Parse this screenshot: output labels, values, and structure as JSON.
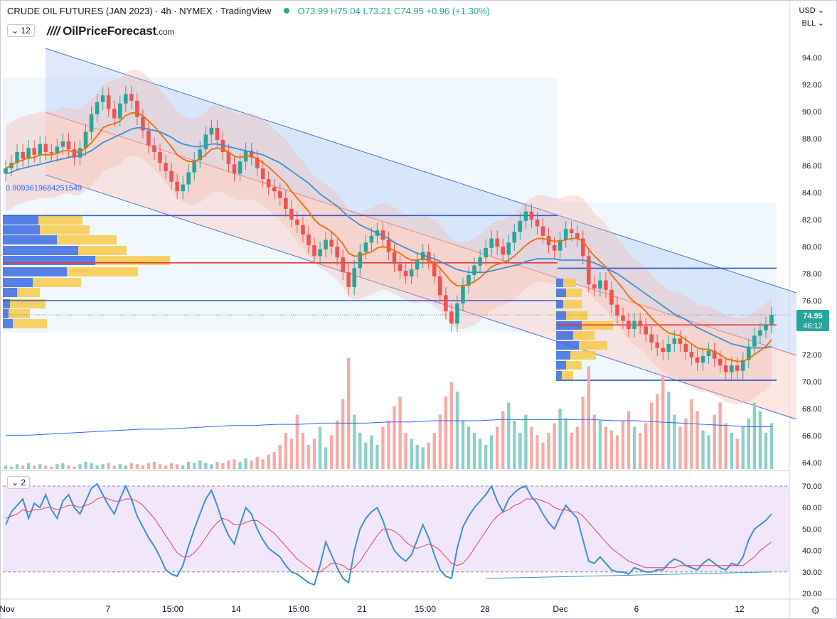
{
  "header": {
    "symbol": "CRUDE OIL FUTURES (JAN 2023)",
    "interval": "4h",
    "exchange": "NYMEX",
    "platform": "TradingView",
    "ohlc": "O73.99 H75.04 L73.21 C74.95 +0.96 (+1.30%)",
    "indicator_count": "12",
    "currency": "USD",
    "unit": "BLL"
  },
  "logo": {
    "name": "OilPriceForecast",
    "suffix": ".com"
  },
  "rsi_pane": {
    "indicator_count": "2",
    "levels": [
      30,
      70
    ],
    "ticks": [
      "70.00",
      "60.00",
      "50.00",
      "40.00",
      "30.00",
      "20.00"
    ]
  },
  "price_tag": {
    "price": "74.95",
    "countdown": "46:12"
  },
  "fib_label": "0.9093619684251549",
  "colors": {
    "up": "#26a69a",
    "down": "#ef5350",
    "ema_fast": "#ef6c00",
    "ema_slow": "#3a8fd0",
    "channel_line": "#4a6fd6",
    "level": "#3557c9",
    "rsi_line": "#3a8fd0",
    "rsi_signal": "#e0405a"
  },
  "chart_data": {
    "type": "candlestick",
    "title": "CRUDE OIL FUTURES (JAN 2023)",
    "y_axis": {
      "ylim": [
        63.5,
        95.5
      ],
      "ticks": [
        "94.00",
        "92.00",
        "90.00",
        "88.00",
        "86.00",
        "84.00",
        "82.00",
        "80.00",
        "78.00",
        "76.00",
        "74.00",
        "72.00",
        "70.00",
        "68.00",
        "66.00",
        "64.00"
      ]
    },
    "x_axis": {
      "ticks": [
        "Nov",
        "7",
        "15:00",
        "14",
        "15:00",
        "21",
        "15:00",
        "28",
        "Dec",
        "6",
        "12"
      ]
    },
    "last": {
      "open": 73.99,
      "high": 75.04,
      "low": 73.21,
      "close": 74.95,
      "change": 0.96,
      "change_pct": 1.3
    },
    "key_levels": [
      82.3,
      78.8,
      78.4,
      76.0,
      74.2,
      70.1
    ],
    "closes": [
      85.8,
      86.2,
      87.0,
      86.5,
      87.3,
      86.8,
      87.6,
      87.0,
      86.9,
      87.4,
      87.8,
      87.2,
      86.6,
      87.3,
      88.5,
      89.8,
      90.7,
      91.2,
      90.2,
      89.5,
      90.6,
      91.3,
      90.8,
      89.6,
      88.6,
      87.5,
      87.0,
      86.2,
      85.6,
      84.8,
      84.1,
      84.6,
      85.5,
      86.4,
      87.2,
      88.3,
      88.8,
      87.9,
      87.0,
      86.1,
      85.4,
      86.3,
      87.1,
      86.6,
      85.8,
      85.0,
      84.4,
      84.1,
      83.6,
      82.8,
      82.0,
      81.6,
      80.9,
      80.1,
      79.3,
      79.8,
      80.5,
      80.0,
      79.2,
      78.1,
      77.0,
      78.4,
      79.6,
      80.3,
      80.8,
      81.2,
      80.5,
      79.6,
      78.7,
      78.2,
      77.8,
      78.3,
      79.0,
      79.6,
      78.9,
      77.8,
      76.4,
      75.2,
      74.3,
      75.8,
      77.1,
      77.9,
      78.6,
      79.2,
      79.9,
      80.6,
      80.0,
      79.4,
      80.3,
      81.1,
      81.9,
      82.6,
      82.0,
      81.5,
      80.8,
      80.1,
      79.7,
      80.5,
      81.3,
      81.0,
      80.6,
      79.3,
      77.2,
      76.9,
      77.5,
      76.8,
      75.7,
      74.9,
      74.5,
      73.9,
      74.5,
      74.1,
      73.5,
      72.9,
      72.5,
      72.2,
      72.8,
      73.2,
      72.8,
      72.2,
      71.8,
      71.4,
      71.9,
      72.3,
      71.7,
      71.2,
      70.7,
      71.2,
      70.8,
      71.6,
      72.6,
      73.4,
      73.8,
      74.2,
      74.95
    ],
    "ema_fast": [
      85.8,
      86.0,
      86.3,
      86.4,
      86.6,
      86.6,
      86.8,
      86.8,
      86.8,
      86.9,
      87.1,
      87.1,
      87.0,
      87.0,
      87.3,
      87.7,
      88.2,
      88.8,
      89.0,
      89.1,
      89.3,
      89.7,
      89.9,
      89.9,
      89.7,
      89.3,
      88.9,
      88.4,
      87.9,
      87.4,
      86.8,
      86.5,
      86.3,
      86.3,
      86.5,
      86.8,
      87.2,
      87.3,
      87.2,
      87.0,
      86.7,
      86.6,
      86.7,
      86.7,
      86.5,
      86.2,
      85.9,
      85.5,
      85.1,
      84.7,
      84.1,
      83.6,
      83.1,
      82.6,
      82.0,
      81.6,
      81.4,
      81.1,
      80.7,
      80.2,
      79.5,
      79.3,
      79.3,
      79.5,
      79.6,
      79.9,
      80.0,
      79.9,
      79.7,
      79.5,
      79.2,
      79.0,
      79.0,
      79.1,
      79.0,
      78.8,
      78.4,
      77.9,
      77.4,
      77.1,
      77.1,
      77.2,
      77.4,
      77.7,
      78.1,
      78.5,
      78.7,
      78.8,
      79.0,
      79.3,
      79.7,
      80.1,
      80.4,
      80.6,
      80.6,
      80.5,
      80.4,
      80.4,
      80.5,
      80.6,
      80.6,
      80.4,
      79.8,
      79.3,
      78.9,
      78.5,
      77.9,
      77.4,
      76.9,
      76.3,
      75.9,
      75.6,
      75.2,
      74.7,
      74.3,
      73.9,
      73.6,
      73.5,
      73.4,
      73.1,
      72.8,
      72.5,
      72.4,
      72.4,
      72.2,
      72.0,
      71.7,
      71.6,
      71.5,
      71.5,
      71.7,
      72.0,
      72.3,
      72.6,
      73.1
    ],
    "ema_slow": [
      85.4,
      85.5,
      85.7,
      85.8,
      85.9,
      86.0,
      86.1,
      86.2,
      86.3,
      86.4,
      86.5,
      86.6,
      86.7,
      86.7,
      86.9,
      87.1,
      87.4,
      87.7,
      87.9,
      88.1,
      88.3,
      88.5,
      88.7,
      88.8,
      88.8,
      88.7,
      88.6,
      88.5,
      88.3,
      88.1,
      87.8,
      87.6,
      87.5,
      87.4,
      87.4,
      87.5,
      87.6,
      87.6,
      87.5,
      87.4,
      87.3,
      87.2,
      87.1,
      87.0,
      86.9,
      86.8,
      86.6,
      86.4,
      86.2,
      85.9,
      85.6,
      85.3,
      85.0,
      84.7,
      84.3,
      83.9,
      83.6,
      83.3,
      83.0,
      82.6,
      82.2,
      81.9,
      81.6,
      81.4,
      81.2,
      81.0,
      80.8,
      80.6,
      80.3,
      80.1,
      79.9,
      79.7,
      79.5,
      79.4,
      79.2,
      79.1,
      78.9,
      78.7,
      78.5,
      78.3,
      78.2,
      78.1,
      78.1,
      78.1,
      78.1,
      78.2,
      78.3,
      78.4,
      78.5,
      78.6,
      78.7,
      78.9,
      79.0,
      79.1,
      79.1,
      79.1,
      79.1,
      79.0,
      79.0,
      79.0,
      79.0,
      79.0,
      78.9,
      78.8,
      78.6,
      78.4,
      78.2,
      78.0,
      77.7,
      77.4,
      77.1,
      76.8,
      76.5,
      76.2,
      75.9,
      75.6,
      75.3,
      75.0,
      74.8,
      74.6,
      74.3,
      74.0,
      73.8,
      73.6,
      73.4,
      73.2,
      73.0,
      72.8,
      72.7,
      72.6,
      72.5,
      72.5,
      72.5,
      72.5,
      72.6
    ],
    "volume": [
      3,
      2,
      4,
      3,
      5,
      3,
      4,
      3,
      2,
      4,
      5,
      3,
      2,
      4,
      6,
      5,
      3,
      4,
      5,
      3,
      4,
      3,
      5,
      4,
      3,
      5,
      6,
      4,
      3,
      5,
      4,
      3,
      6,
      5,
      7,
      5,
      4,
      6,
      5,
      7,
      8,
      6,
      9,
      7,
      10,
      8,
      12,
      14,
      20,
      30,
      25,
      45,
      30,
      20,
      25,
      35,
      18,
      28,
      40,
      58,
      92,
      45,
      30,
      22,
      28,
      20,
      35,
      40,
      52,
      60,
      30,
      25,
      20,
      18,
      22,
      30,
      45,
      60,
      72,
      64,
      40,
      35,
      30,
      25,
      20,
      28,
      35,
      48,
      55,
      40,
      30,
      45,
      35,
      28,
      22,
      30,
      38,
      50,
      42,
      30,
      35,
      60,
      85,
      45,
      40,
      35,
      32,
      28,
      40,
      48,
      35,
      30,
      38,
      55,
      62,
      78,
      64,
      45,
      35,
      42,
      58,
      48,
      32,
      28,
      45,
      55,
      38,
      30,
      25,
      35,
      42,
      55,
      48,
      30,
      38
    ],
    "volume_ma": [
      28,
      28,
      29,
      30,
      31,
      32,
      33,
      33,
      34,
      35,
      36,
      36,
      37,
      37,
      38,
      38,
      38,
      39,
      39,
      40,
      40,
      40,
      41,
      41,
      41,
      41,
      41,
      40,
      40,
      39,
      38,
      37,
      36,
      35,
      35
    ],
    "rsi": [
      52,
      58,
      61,
      64,
      55,
      62,
      60,
      66,
      59,
      55,
      63,
      66,
      60,
      57,
      63,
      69,
      71,
      66,
      61,
      57,
      64,
      70,
      64,
      56,
      51,
      46,
      42,
      37,
      31,
      29,
      28,
      33,
      42,
      50,
      57,
      64,
      68,
      61,
      53,
      47,
      43,
      52,
      60,
      57,
      50,
      45,
      41,
      39,
      37,
      33,
      30,
      29,
      27,
      25,
      24,
      33,
      44,
      38,
      32,
      27,
      25,
      40,
      50,
      55,
      58,
      60,
      54,
      46,
      40,
      37,
      35,
      38,
      45,
      52,
      46,
      38,
      31,
      28,
      27,
      41,
      51,
      56,
      60,
      63,
      66,
      70,
      63,
      58,
      64,
      67,
      69,
      70,
      65,
      62,
      57,
      53,
      50,
      56,
      61,
      58,
      55,
      45,
      35,
      34,
      37,
      34,
      31,
      30,
      30,
      29,
      32,
      31,
      30,
      30,
      31,
      31,
      34,
      36,
      35,
      33,
      32,
      31,
      34,
      36,
      34,
      32,
      31,
      34,
      33,
      37,
      45,
      50,
      52,
      54,
      57
    ],
    "rsi_signal": [
      55,
      56,
      57,
      59,
      58,
      59,
      59,
      60,
      60,
      59,
      60,
      61,
      61,
      60,
      61,
      62,
      64,
      65,
      64,
      63,
      63,
      64,
      64,
      63,
      61,
      58,
      55,
      51,
      47,
      43,
      39,
      37,
      37,
      39,
      42,
      46,
      50,
      53,
      55,
      54,
      52,
      52,
      53,
      54,
      54,
      52,
      50,
      48,
      45,
      42,
      39,
      36,
      34,
      32,
      30,
      30,
      32,
      34,
      34,
      33,
      31,
      32,
      35,
      39,
      43,
      47,
      50,
      50,
      49,
      47,
      44,
      42,
      41,
      42,
      43,
      42,
      40,
      37,
      34,
      33,
      34,
      37,
      41,
      45,
      49,
      53,
      56,
      58,
      59,
      61,
      62,
      64,
      64,
      64,
      63,
      62,
      60,
      59,
      59,
      58,
      58,
      56,
      53,
      50,
      47,
      44,
      41,
      39,
      37,
      35,
      34,
      33,
      32,
      32,
      32,
      32,
      32,
      32,
      33,
      33,
      33,
      33,
      33,
      33,
      33,
      33,
      33,
      33,
      33,
      33,
      35,
      37,
      40,
      42,
      44
    ]
  }
}
